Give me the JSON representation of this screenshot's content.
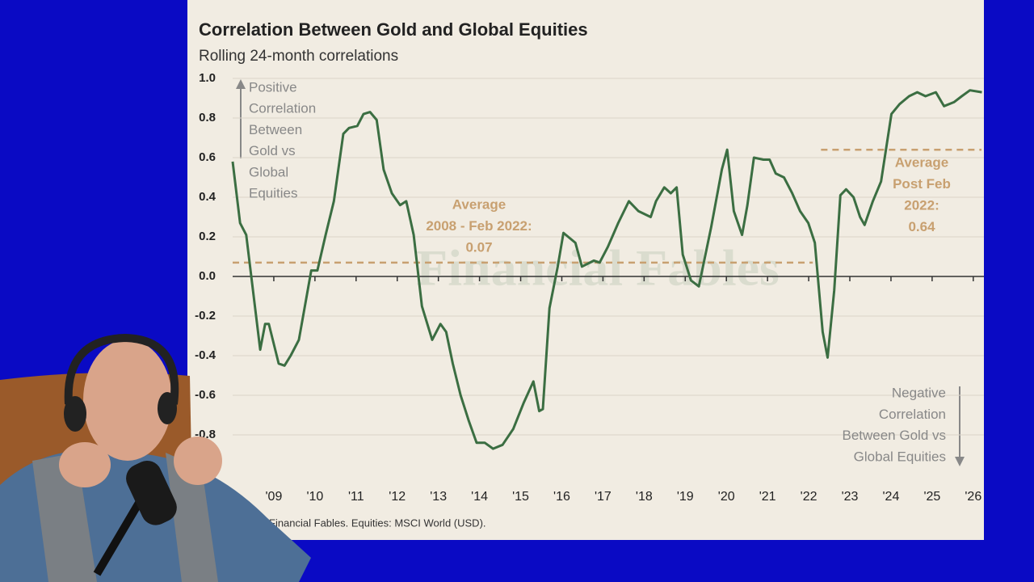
{
  "chart_data": {
    "type": "line",
    "title": "Correlation Between Gold and Global Equities",
    "subtitle": "Rolling 24-month correlations",
    "source": "Financial Fables. Equities: MSCI World (USD).",
    "watermark": "Financial Fables",
    "color": "#3b6e42",
    "x": [
      2008.0,
      2008.18,
      2008.33,
      2008.67,
      2008.79,
      2008.88,
      2009.12,
      2009.26,
      2009.41,
      2009.61,
      2009.91,
      2010.06,
      2010.26,
      2010.46,
      2010.69,
      2010.83,
      2011.03,
      2011.18,
      2011.34,
      2011.5,
      2011.67,
      2011.87,
      2012.07,
      2012.22,
      2012.4,
      2012.6,
      2012.85,
      2013.05,
      2013.19,
      2013.35,
      2013.54,
      2013.74,
      2013.93,
      2014.13,
      2014.33,
      2014.56,
      2014.82,
      2015.07,
      2015.31,
      2015.45,
      2015.54,
      2015.7,
      2015.9,
      2016.04,
      2016.33,
      2016.49,
      2016.78,
      2016.92,
      2017.12,
      2017.37,
      2017.63,
      2017.86,
      2018.16,
      2018.29,
      2018.49,
      2018.65,
      2018.79,
      2018.94,
      2019.14,
      2019.33,
      2019.63,
      2019.89,
      2020.02,
      2020.18,
      2020.38,
      2020.51,
      2020.67,
      2020.9,
      2021.05,
      2021.2,
      2021.4,
      2021.6,
      2021.79,
      2021.99,
      2022.15,
      2022.34,
      2022.46,
      2022.62,
      2022.77,
      2022.91,
      2023.09,
      2023.25,
      2023.36,
      2023.56,
      2023.76,
      2024.01,
      2024.21,
      2024.44,
      2024.64,
      2024.84,
      2025.09,
      2025.29,
      2025.53,
      2025.72,
      2025.92,
      2026.21
    ],
    "values": [
      0.58,
      0.27,
      0.21,
      -0.37,
      -0.24,
      -0.24,
      -0.44,
      -0.45,
      -0.4,
      -0.32,
      0.03,
      0.03,
      0.21,
      0.38,
      0.72,
      0.75,
      0.76,
      0.82,
      0.83,
      0.79,
      0.54,
      0.42,
      0.36,
      0.38,
      0.21,
      -0.15,
      -0.32,
      -0.24,
      -0.28,
      -0.44,
      -0.6,
      -0.73,
      -0.84,
      -0.84,
      -0.87,
      -0.85,
      -0.77,
      -0.64,
      -0.53,
      -0.68,
      -0.67,
      -0.16,
      0.05,
      0.22,
      0.17,
      0.05,
      0.08,
      0.07,
      0.15,
      0.27,
      0.38,
      0.33,
      0.3,
      0.38,
      0.45,
      0.42,
      0.45,
      0.11,
      -0.02,
      -0.05,
      0.25,
      0.54,
      0.64,
      0.33,
      0.21,
      0.36,
      0.6,
      0.59,
      0.59,
      0.52,
      0.5,
      0.42,
      0.33,
      0.27,
      0.17,
      -0.28,
      -0.41,
      -0.07,
      0.41,
      0.44,
      0.4,
      0.3,
      0.26,
      0.38,
      0.48,
      0.82,
      0.87,
      0.91,
      0.93,
      0.91,
      0.93,
      0.86,
      0.88,
      0.91,
      0.94,
      0.93
    ],
    "xlim": [
      2008,
      2026.2
    ],
    "ylim": [
      -1,
      1
    ],
    "yticks": [
      {
        "value": 1,
        "label": "1.0"
      },
      0.8,
      0.6,
      0.4,
      0.2,
      {
        "value": 0,
        "label": "0.0"
      },
      -0.2,
      -0.4,
      -0.6,
      -0.8
    ],
    "xticks": [
      {
        "value": 2009,
        "label": "'09"
      },
      {
        "value": 2010,
        "label": "'10"
      },
      {
        "value": 2011,
        "label": "'11"
      },
      {
        "value": 2012,
        "label": "'12"
      },
      {
        "value": 2013,
        "label": "'13"
      },
      {
        "value": 2014,
        "label": "'14"
      },
      {
        "value": 2015,
        "label": "'15"
      },
      {
        "value": 2016,
        "label": "'16"
      },
      {
        "value": 2017,
        "label": "'17"
      },
      {
        "value": 2018,
        "label": "'18"
      },
      {
        "value": 2019,
        "label": "'19"
      },
      {
        "value": 2020,
        "label": "'20"
      },
      {
        "value": 2021,
        "label": "'21"
      },
      {
        "value": 2022,
        "label": "'22"
      },
      {
        "value": 2023,
        "label": "'23"
      },
      {
        "value": 2024,
        "label": "'24"
      },
      {
        "value": 2025,
        "label": "'25"
      },
      {
        "value": 2026,
        "label": "'26"
      }
    ],
    "grid": true,
    "reference_lines": [
      {
        "label": [
          "Average",
          "2008 - Feb 2022:"
        ],
        "value": 0.07,
        "x": [
          2008,
          2022.1
        ],
        "color": "#c8a070"
      },
      {
        "label": [
          "Average",
          "Post Feb",
          "2022:"
        ],
        "value": 0.64,
        "x": [
          2022.3,
          2026.2
        ],
        "color": "#c8a070"
      }
    ],
    "annotations": [
      {
        "text": [
          "Positive",
          "Correlation",
          "Between",
          "Gold vs",
          "Global",
          "Equities"
        ]
      },
      {
        "text": [
          "Negative",
          "Correlation",
          "Between Gold vs",
          "Global Equities"
        ]
      }
    ]
  }
}
